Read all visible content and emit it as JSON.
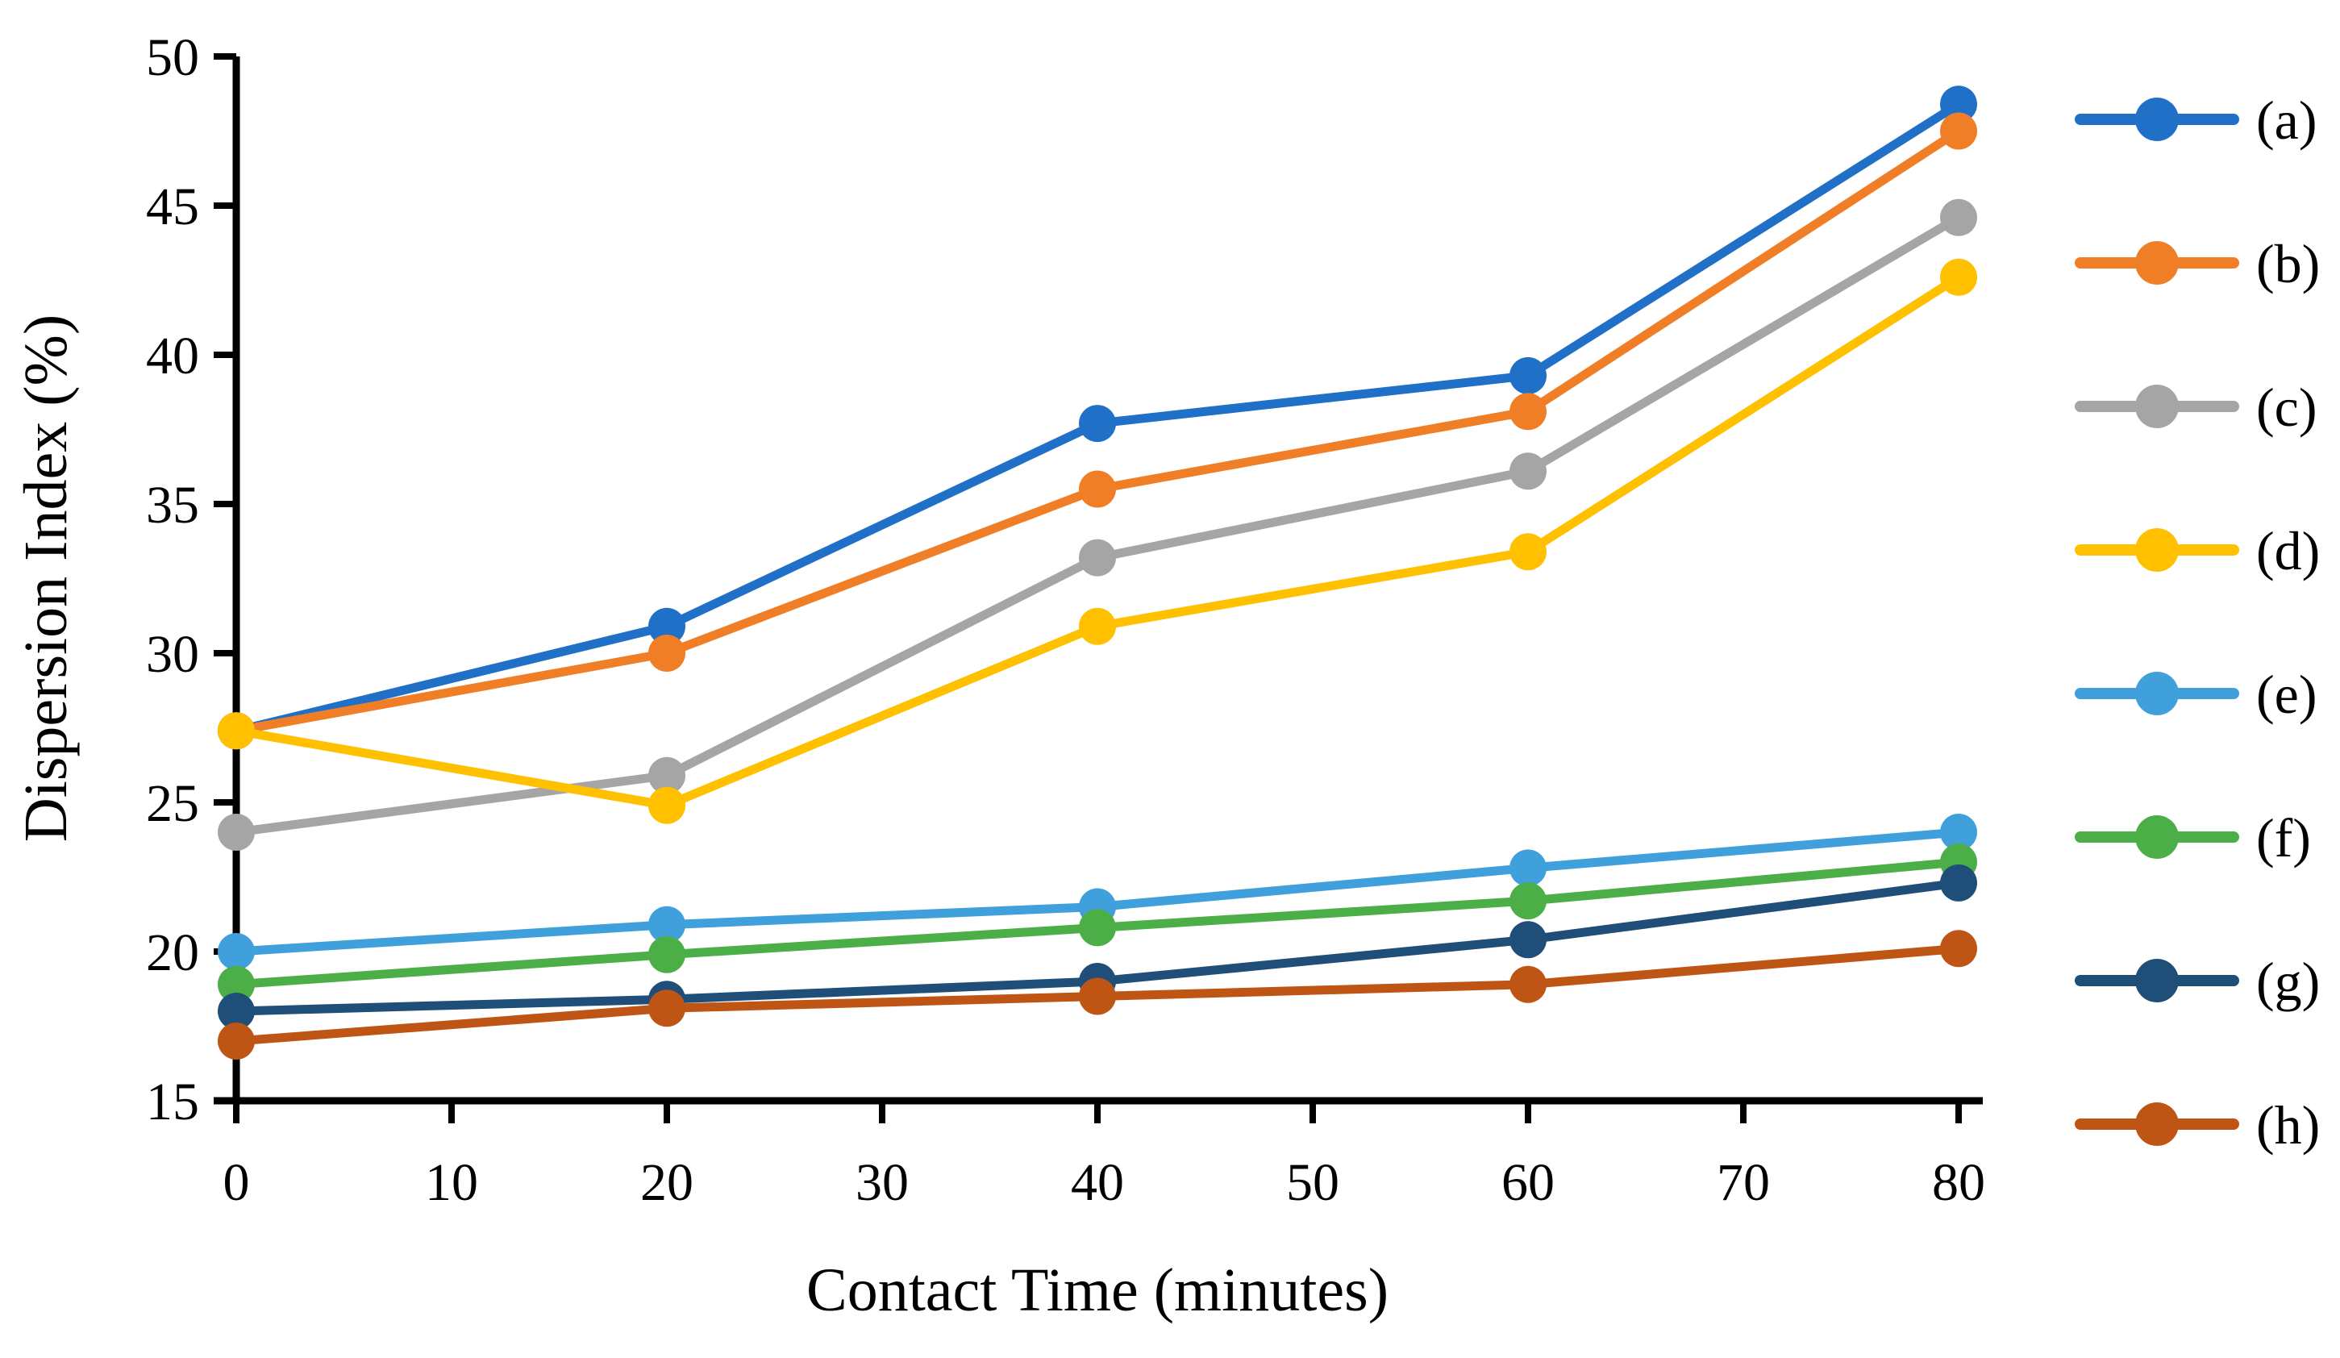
{
  "chart_data": {
    "type": "line",
    "title": "",
    "xlabel": "Contact Time (minutes)",
    "ylabel": "Dispersion Index (%)",
    "x": [
      0,
      20,
      40,
      60,
      80
    ],
    "xticks": [
      0,
      10,
      20,
      30,
      40,
      50,
      60,
      70,
      80
    ],
    "yticks": [
      15,
      20,
      25,
      30,
      35,
      40,
      45,
      50
    ],
    "xlim": [
      0,
      80
    ],
    "ylim": [
      15,
      50
    ],
    "grid": false,
    "legend_position": "right",
    "axis_color": "#000000",
    "series": [
      {
        "name": "(a)",
        "color": "#2170C8",
        "values": [
          27.4,
          30.9,
          37.7,
          39.3,
          48.4
        ]
      },
      {
        "name": "(b)",
        "color": "#F07E26",
        "values": [
          27.4,
          30.0,
          35.5,
          38.1,
          47.5
        ]
      },
      {
        "name": "(c)",
        "color": "#A5A5A5",
        "values": [
          24.0,
          25.9,
          33.2,
          36.1,
          44.6
        ]
      },
      {
        "name": "(d)",
        "color": "#FFC000",
        "values": [
          27.4,
          24.9,
          30.9,
          33.4,
          42.6
        ]
      },
      {
        "name": "(e)",
        "color": "#3FA0DC",
        "values": [
          20.0,
          20.9,
          21.5,
          22.8,
          24.0
        ]
      },
      {
        "name": "(f)",
        "color": "#4BAE47",
        "values": [
          18.9,
          19.9,
          20.8,
          21.7,
          23.0
        ]
      },
      {
        "name": "(g)",
        "color": "#1F4E79",
        "values": [
          18.0,
          18.4,
          19.0,
          20.4,
          22.3
        ]
      },
      {
        "name": "(h)",
        "color": "#BE5514",
        "values": [
          17.0,
          18.1,
          18.5,
          18.9,
          20.1
        ]
      }
    ]
  }
}
